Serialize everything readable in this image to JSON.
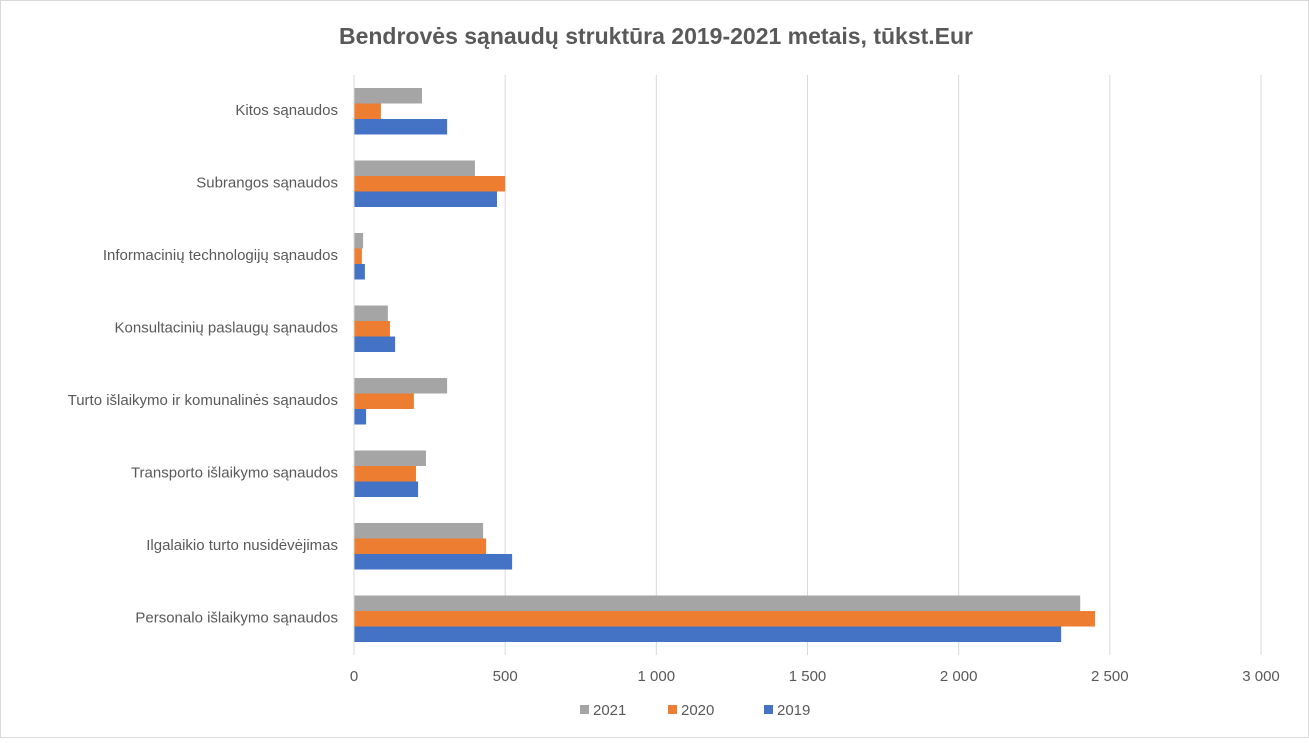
{
  "chart_data": {
    "type": "hbar",
    "title": "Bendrovės sąnaudų struktūra 2019-2021 metais, tūkst.Eur",
    "categories": [
      "Kitos  sąnaudos",
      "Subrangos sąnaudos",
      "Informacinių technologijų sąnaudos",
      "Konsultacinių  paslaugų sąnaudos",
      "Turto išlaikymo ir komunalinės sąnaudos",
      "Transporto išlaikymo sąnaudos",
      "Ilgalaikio turto nusidėvėjimas",
      "Personalo išlaikymo sąnaudos"
    ],
    "series": [
      {
        "name": "2021",
        "color": "#a5a5a5",
        "values": [
          225,
          400,
          30,
          112,
          308,
          238,
          427,
          2402
        ]
      },
      {
        "name": "2020",
        "color": "#ed7d31",
        "values": [
          89,
          500,
          26,
          119,
          198,
          205,
          437,
          2451
        ]
      },
      {
        "name": "2019",
        "color": "#4472c4",
        "values": [
          308,
          473,
          36,
          136,
          40,
          212,
          523,
          2339
        ]
      }
    ],
    "xlim": [
      0,
      3000
    ],
    "xticks": [
      0,
      500,
      {
        "value": 1000,
        "label": "1 000"
      },
      {
        "value": 1500,
        "label": "1 500"
      },
      {
        "value": 2000,
        "label": "2 000"
      },
      {
        "value": 2500,
        "label": "2 500"
      },
      {
        "value": 3000,
        "label": "3 000"
      }
    ],
    "grid": true,
    "legend": "bottom"
  }
}
